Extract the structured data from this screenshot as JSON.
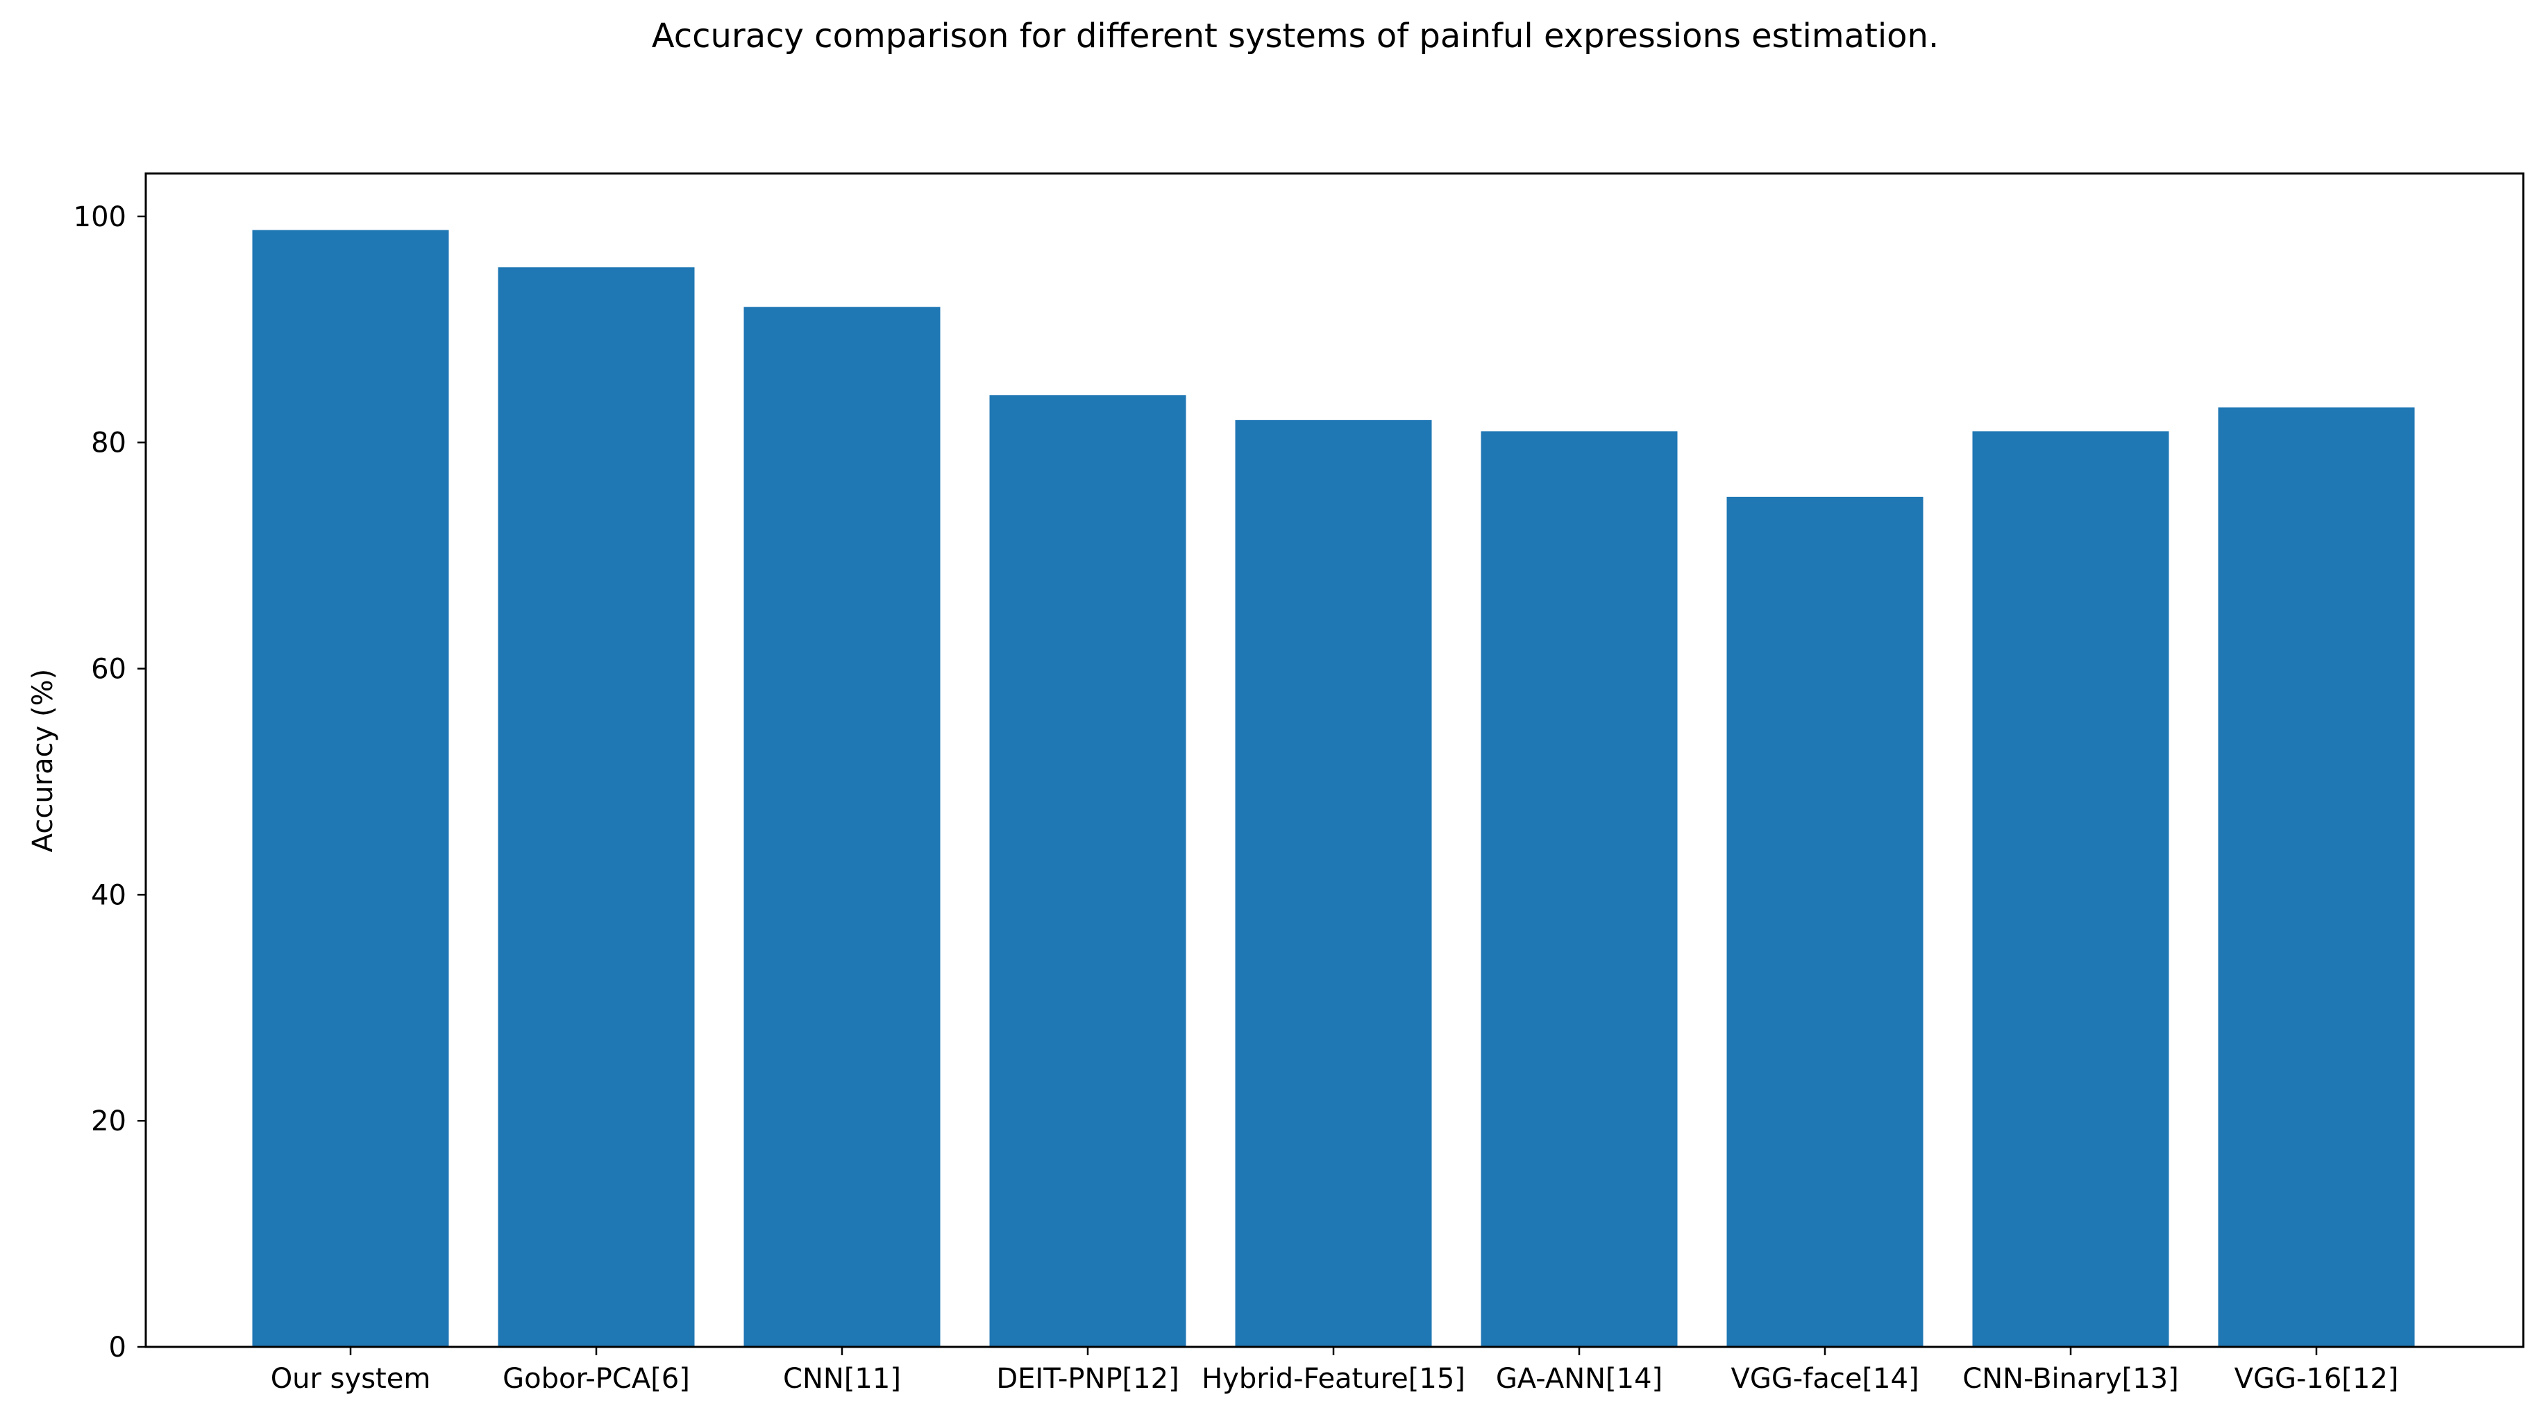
{
  "chart_data": {
    "type": "bar",
    "title": "Accuracy comparison for different systems of painful expressions estimation.",
    "xlabel": "",
    "ylabel": "Accuracy (%)",
    "categories": [
      "Our system",
      "Gobor-PCA[6]",
      "CNN[11]",
      "DEIT-PNP[12]",
      "Hybrid-Feature[15]",
      "GA-ANN[14]",
      "VGG-face[14]",
      "CNN-Binary[13]",
      "VGG-16[12]"
    ],
    "values": [
      98.8,
      95.5,
      92.0,
      84.2,
      82.0,
      81.0,
      75.2,
      81.0,
      83.1
    ],
    "ylim": [
      0,
      103.8
    ],
    "yticks": [
      0,
      20,
      40,
      60,
      80,
      100
    ],
    "grid": false,
    "bar_color": "#1f77b4"
  }
}
